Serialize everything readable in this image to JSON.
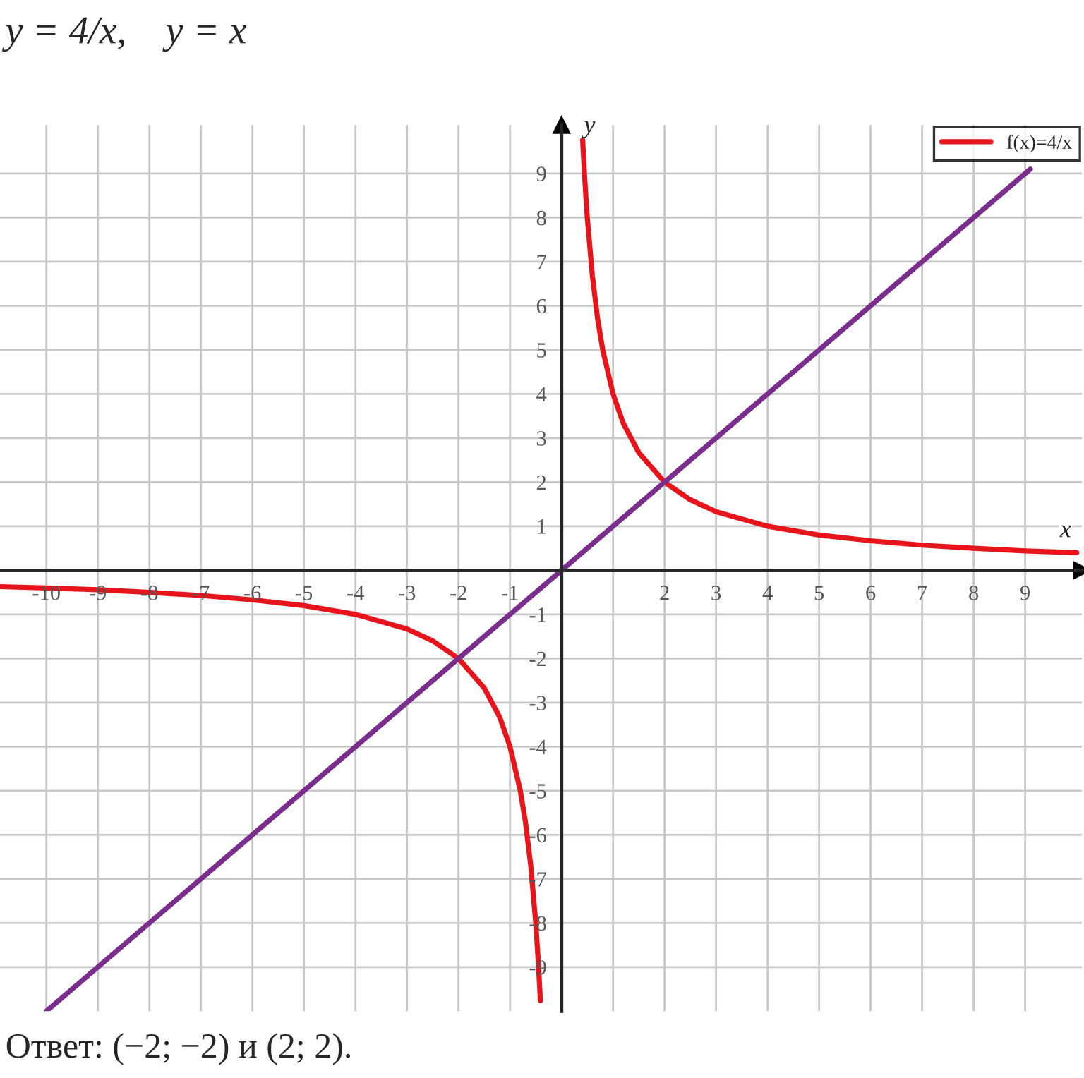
{
  "chart_data": {
    "type": "line",
    "title": "y = 4/x,    y = x",
    "xlabel": "x",
    "ylabel": "y",
    "xlim": [
      -10.9,
      10.1
    ],
    "ylim": [
      -10,
      10.1
    ],
    "xticks": [
      -10,
      -9,
      -8,
      -7,
      -6,
      -5,
      -4,
      -3,
      -2,
      -1,
      {
        "value": 1,
        "label": null
      },
      2,
      3,
      4,
      5,
      6,
      7,
      8,
      9
    ],
    "yticks": [
      -9,
      -8,
      -7,
      -6,
      -5,
      -4,
      -3,
      -2,
      -1,
      1,
      2,
      3,
      4,
      5,
      6,
      7,
      8,
      9
    ],
    "grid": true,
    "legend": "top right",
    "marker": "none",
    "line_style": "solid",
    "series": [
      {
        "name": "f(x)=4/x",
        "color": "#e8141b",
        "x": [
          0.41,
          0.45,
          0.5,
          0.6,
          0.7,
          0.8,
          1,
          1.2,
          1.5,
          2,
          2.5,
          3,
          4,
          5,
          6,
          7,
          8,
          9,
          10
        ],
        "values": [
          9.76,
          8.89,
          8,
          6.67,
          5.71,
          5,
          4,
          3.33,
          2.67,
          2,
          1.6,
          1.33,
          1,
          0.8,
          0.67,
          0.57,
          0.5,
          0.44,
          0.4
        ]
      },
      {
        "color": "#e8141b",
        "x": [
          -10.9,
          -10,
          -9,
          -8,
          -7,
          -6,
          -5,
          -4,
          -3,
          -2.5,
          -2,
          -1.5,
          -1.2,
          -1,
          -0.8,
          -0.7,
          -0.6,
          -0.5,
          -0.45,
          -0.41
        ],
        "values": [
          -0.37,
          -0.4,
          -0.44,
          -0.5,
          -0.57,
          -0.67,
          -0.8,
          -1,
          -1.33,
          -1.6,
          -2,
          -2.67,
          -3.33,
          -4,
          -5,
          -5.71,
          -6.67,
          -8,
          -8.89,
          -9.76
        ]
      },
      {
        "color": "#7b2d8e",
        "x": [
          -10,
          9.1
        ],
        "values": [
          -10,
          9.1
        ]
      }
    ],
    "annotations": [
      "Ответ: (−2; −2) и (2; 2)."
    ]
  }
}
